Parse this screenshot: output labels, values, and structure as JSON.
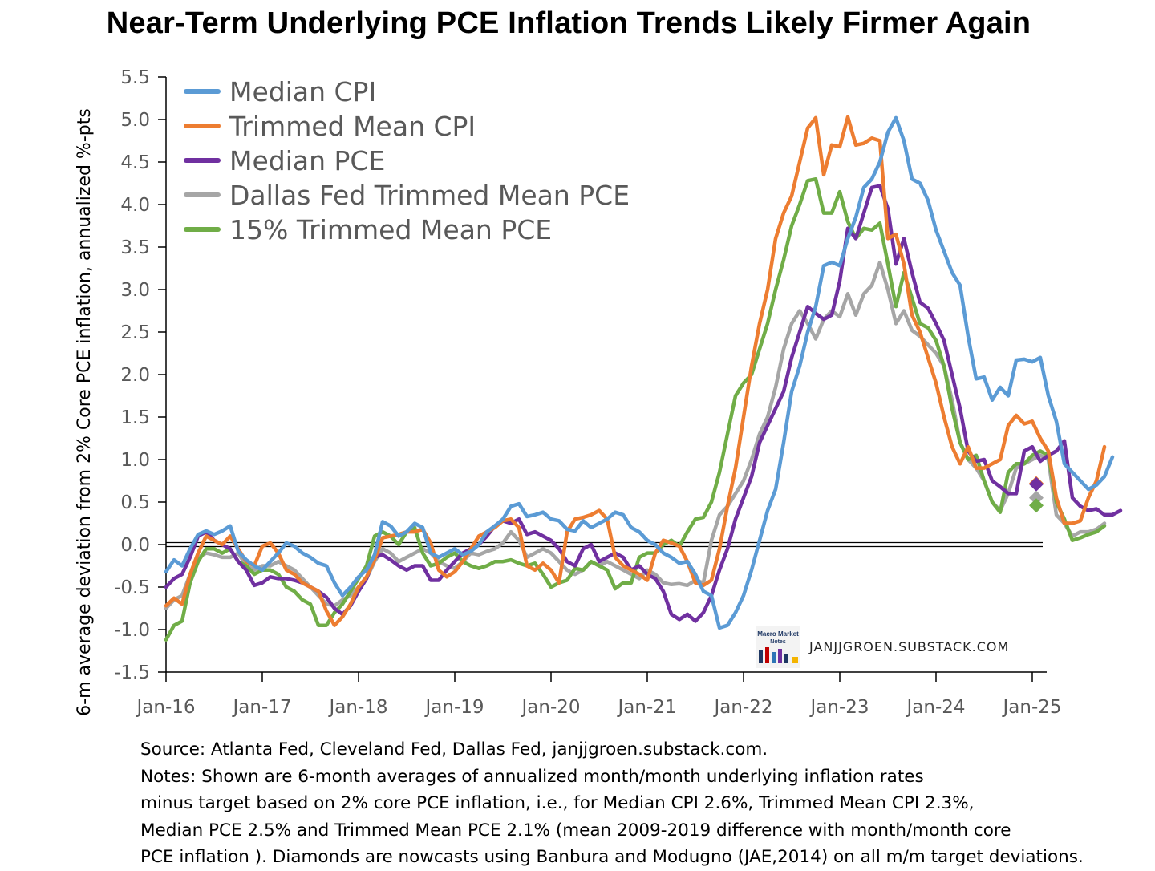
{
  "chart_data": {
    "type": "line",
    "title": "Near-Term Underlying PCE Inflation Trends Likely Firmer Again",
    "ylabel": "6-m average deviation from 2% Core PCE inflation, annualized %-pts",
    "xlabel": "",
    "ylim": [
      -1.5,
      5.5
    ],
    "yticks": [
      "5.5",
      "5.0",
      "4.5",
      "4.0",
      "3.5",
      "3.0",
      "2.5",
      "2.0",
      "1.5",
      "1.0",
      "0.5",
      "0.0",
      "-0.5",
      "-1.0",
      "-1.5"
    ],
    "xticks": [
      "Jan-16",
      "Jan-17",
      "Jan-18",
      "Jan-19",
      "Jan-20",
      "Jan-21",
      "Jan-22",
      "Jan-23",
      "Jan-24",
      "Jan-25"
    ],
    "x_start": "2016-01",
    "x_end": "2025-01",
    "zero_line": "double",
    "grid": false,
    "legend_position": "top-left",
    "series": [
      {
        "name": "Median CPI",
        "color": "#5b9bd5",
        "x_start": "2016-01",
        "values": [
          -0.32,
          -0.18,
          -0.25,
          -0.05,
          0.12,
          0.16,
          0.12,
          0.16,
          0.22,
          -0.08,
          -0.18,
          -0.25,
          -0.3,
          -0.2,
          -0.1,
          0.02,
          -0.02,
          -0.1,
          -0.15,
          -0.22,
          -0.25,
          -0.45,
          -0.6,
          -0.5,
          -0.38,
          -0.3,
          -0.12,
          0.27,
          0.22,
          0.1,
          0.15,
          0.25,
          0.2,
          -0.1,
          -0.15,
          -0.1,
          -0.05,
          -0.12,
          -0.08,
          0.0,
          0.15,
          0.22,
          0.3,
          0.45,
          0.48,
          0.33,
          0.35,
          0.38,
          0.3,
          0.28,
          0.18,
          0.16,
          0.28,
          0.2,
          0.25,
          0.3,
          0.38,
          0.35,
          0.2,
          0.15,
          0.05,
          0.0,
          -0.1,
          -0.15,
          -0.22,
          -0.2,
          -0.35,
          -0.55,
          -0.6,
          -0.98,
          -0.95,
          -0.8,
          -0.6,
          -0.3,
          0.05,
          0.4,
          0.65,
          1.2,
          1.8,
          2.1,
          2.5,
          2.8,
          3.28,
          3.32,
          3.28,
          3.6,
          3.85,
          4.2,
          4.3,
          4.5,
          4.85,
          5.02,
          4.75,
          4.3,
          4.25,
          4.05,
          3.7,
          3.45,
          3.2,
          3.05,
          2.45,
          1.95,
          1.97,
          1.7,
          1.85,
          1.75,
          2.17,
          2.18,
          2.15,
          2.2,
          1.75,
          1.45,
          0.95,
          0.85,
          0.75,
          0.65,
          0.7,
          0.8,
          1.03
        ]
      },
      {
        "name": "Trimmed Mean CPI",
        "color": "#ed7d31",
        "x_start": "2016-01",
        "values": [
          -0.72,
          -0.63,
          -0.7,
          -0.35,
          -0.1,
          0.1,
          0.05,
          0.0,
          0.1,
          -0.05,
          -0.2,
          -0.25,
          -0.02,
          0.02,
          -0.1,
          -0.3,
          -0.35,
          -0.45,
          -0.5,
          -0.55,
          -0.78,
          -0.95,
          -0.85,
          -0.7,
          -0.5,
          -0.38,
          -0.18,
          0.08,
          0.1,
          0.12,
          0.15,
          0.15,
          0.18,
          0.02,
          -0.3,
          -0.38,
          -0.32,
          -0.2,
          -0.05,
          0.1,
          0.15,
          0.2,
          0.28,
          0.3,
          0.2,
          -0.25,
          -0.3,
          -0.22,
          -0.3,
          -0.45,
          0.15,
          0.3,
          0.32,
          0.35,
          0.4,
          0.3,
          -0.15,
          -0.25,
          -0.3,
          -0.35,
          -0.42,
          -0.1,
          0.05,
          0.02,
          -0.02,
          -0.2,
          -0.45,
          -0.48,
          -0.42,
          -0.05,
          0.45,
          0.9,
          1.5,
          2.1,
          2.6,
          3.0,
          3.6,
          3.9,
          4.1,
          4.5,
          4.9,
          5.02,
          4.35,
          4.7,
          4.68,
          5.03,
          4.7,
          4.72,
          4.78,
          4.75,
          3.6,
          3.65,
          3.3,
          2.7,
          2.5,
          2.2,
          1.9,
          1.5,
          1.15,
          0.95,
          1.15,
          0.9,
          0.9,
          0.95,
          1.0,
          1.4,
          1.52,
          1.42,
          1.45,
          1.25,
          1.1,
          0.55,
          0.25,
          0.25,
          0.28,
          0.55,
          0.75,
          1.15
        ]
      },
      {
        "name": "Median PCE",
        "color": "#7030a0",
        "x_start": "2016-01",
        "values": [
          -0.5,
          -0.4,
          -0.35,
          -0.15,
          0.1,
          0.15,
          0.05,
          0.0,
          -0.05,
          -0.2,
          -0.3,
          -0.48,
          -0.45,
          -0.38,
          -0.4,
          -0.4,
          -0.42,
          -0.45,
          -0.5,
          -0.55,
          -0.62,
          -0.75,
          -0.82,
          -0.72,
          -0.55,
          -0.4,
          -0.15,
          -0.12,
          -0.18,
          -0.25,
          -0.3,
          -0.25,
          -0.25,
          -0.42,
          -0.42,
          -0.3,
          -0.2,
          -0.1,
          -0.05,
          0.0,
          0.1,
          0.22,
          0.28,
          0.25,
          0.3,
          0.12,
          0.15,
          0.1,
          0.05,
          -0.05,
          -0.2,
          -0.25,
          -0.05,
          0.0,
          -0.2,
          -0.15,
          -0.1,
          -0.15,
          -0.3,
          -0.25,
          -0.35,
          -0.4,
          -0.55,
          -0.82,
          -0.88,
          -0.82,
          -0.9,
          -0.8,
          -0.6,
          -0.3,
          -0.05,
          0.3,
          0.55,
          0.8,
          1.2,
          1.4,
          1.6,
          1.8,
          2.2,
          2.5,
          2.8,
          2.72,
          2.65,
          2.7,
          3.1,
          3.72,
          3.6,
          3.9,
          4.2,
          4.22,
          3.95,
          3.3,
          3.6,
          3.2,
          2.85,
          2.78,
          2.6,
          2.4,
          2.0,
          1.6,
          1.1,
          0.98,
          1.0,
          0.75,
          0.68,
          0.6,
          0.6,
          1.1,
          1.15,
          0.98,
          1.05,
          1.1,
          1.22,
          0.55,
          0.45,
          0.4,
          0.42,
          0.35,
          0.35,
          0.4
        ]
      },
      {
        "name": "Dallas Fed Trimmed Mean PCE",
        "color": "#a6a6a6",
        "x_start": "2016-01",
        "values": [
          -0.75,
          -0.65,
          -0.6,
          -0.35,
          -0.15,
          -0.1,
          -0.12,
          -0.15,
          -0.15,
          -0.1,
          -0.25,
          -0.3,
          -0.25,
          -0.25,
          -0.2,
          -0.25,
          -0.3,
          -0.4,
          -0.5,
          -0.6,
          -0.7,
          -0.72,
          -0.65,
          -0.6,
          -0.5,
          -0.4,
          -0.2,
          -0.05,
          -0.1,
          -0.2,
          -0.15,
          -0.1,
          -0.05,
          -0.1,
          -0.2,
          -0.25,
          -0.28,
          -0.2,
          -0.1,
          -0.12,
          -0.08,
          -0.05,
          0.02,
          0.15,
          0.05,
          -0.15,
          -0.1,
          -0.05,
          -0.1,
          -0.2,
          -0.3,
          -0.35,
          -0.3,
          -0.2,
          -0.25,
          -0.2,
          -0.25,
          -0.3,
          -0.35,
          -0.4,
          -0.3,
          -0.35,
          -0.45,
          -0.47,
          -0.46,
          -0.48,
          -0.42,
          -0.45,
          0.05,
          0.35,
          0.45,
          0.6,
          0.75,
          1.0,
          1.3,
          1.5,
          1.85,
          2.3,
          2.6,
          2.75,
          2.6,
          2.42,
          2.65,
          2.75,
          2.68,
          2.95,
          2.7,
          2.95,
          3.05,
          3.32,
          3.0,
          2.6,
          2.75,
          2.52,
          2.45,
          2.35,
          2.25,
          2.1,
          1.7,
          1.2,
          1.0,
          0.9,
          0.75,
          0.5,
          0.4,
          0.6,
          0.9,
          0.95,
          1.0,
          1.05,
          1.0,
          0.35,
          0.25,
          0.1,
          0.15,
          0.15,
          0.18,
          0.25
        ]
      },
      {
        "name": "15% Trimmed Mean PCE",
        "color": "#70ad47",
        "x_start": "2016-01",
        "values": [
          -1.12,
          -0.95,
          -0.9,
          -0.45,
          -0.2,
          -0.05,
          -0.05,
          -0.1,
          -0.05,
          -0.2,
          -0.25,
          -0.35,
          -0.3,
          -0.3,
          -0.35,
          -0.5,
          -0.55,
          -0.65,
          -0.7,
          -0.95,
          -0.95,
          -0.8,
          -0.7,
          -0.55,
          -0.4,
          -0.25,
          0.1,
          0.15,
          0.1,
          0.0,
          0.15,
          0.2,
          -0.1,
          -0.25,
          -0.22,
          -0.15,
          -0.1,
          -0.2,
          -0.25,
          -0.28,
          -0.25,
          -0.2,
          -0.2,
          -0.18,
          -0.22,
          -0.25,
          -0.22,
          -0.35,
          -0.5,
          -0.45,
          -0.42,
          -0.28,
          -0.3,
          -0.2,
          -0.25,
          -0.3,
          -0.52,
          -0.45,
          -0.45,
          -0.15,
          -0.1,
          -0.1,
          0.0,
          0.05,
          -0.02,
          0.15,
          0.3,
          0.32,
          0.5,
          0.85,
          1.3,
          1.75,
          1.9,
          2.0,
          2.3,
          2.6,
          3.0,
          3.35,
          3.75,
          4.0,
          4.28,
          4.3,
          3.9,
          3.9,
          4.15,
          3.8,
          3.6,
          3.72,
          3.7,
          3.78,
          3.3,
          2.8,
          3.2,
          2.9,
          2.6,
          2.55,
          2.4,
          2.1,
          1.6,
          1.2,
          1.0,
          1.05,
          0.75,
          0.5,
          0.38,
          0.85,
          0.95,
          0.95,
          1.05,
          1.1,
          1.05,
          0.5,
          0.3,
          0.05,
          0.08,
          0.12,
          0.15,
          0.22
        ]
      }
    ],
    "nowcasts": [
      {
        "name": "Trimmed Mean CPI",
        "x": "2025-01",
        "value": 0.72,
        "color": "#ed7d31"
      },
      {
        "name": "Median PCE",
        "x": "2025-01",
        "value": 0.71,
        "color": "#7030a0"
      },
      {
        "name": "Dallas Fed Trimmed Mean PCE",
        "x": "2025-01",
        "value": 0.55,
        "color": "#a6a6a6"
      },
      {
        "name": "15% Trimmed Mean PCE",
        "x": "2025-01",
        "value": 0.46,
        "color": "#70ad47"
      }
    ]
  },
  "watermark": "JANJJGROEN.SUBSTACK.COM",
  "logo_text": "Macro Market Notes",
  "notes": [
    "Source: Atlanta Fed, Cleveland Fed, Dallas Fed, janjjgroen.substack.com.",
    "Notes: Shown are 6-month averages of annualized month/month underlying inflation rates",
    "minus target based on 2% core PCE inflation, i.e., for Median CPI 2.6%, Trimmed Mean CPI 2.3%,",
    "Median PCE 2.5% and Trimmed Mean PCE 2.1% (mean 2009-2019 difference with month/month core",
    "PCE inflation ). Diamonds are nowcasts using Banbura and Modugno (JAE,2014) on all m/m target deviations."
  ]
}
